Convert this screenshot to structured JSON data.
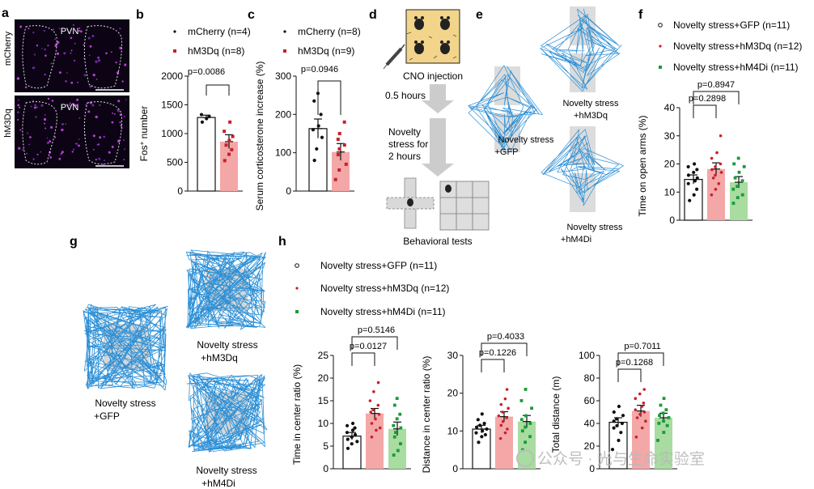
{
  "panels": {
    "a": {
      "letter": "a",
      "region": "PVN",
      "rows": [
        "mCherry",
        "hM3Dq"
      ]
    },
    "b": {
      "letter": "b",
      "legend": [
        "mCherry (n=4)",
        "hM3Dq (n=8)"
      ],
      "pval": "p=0.0086",
      "ylabel_main": "Fos",
      "ylabel_sup": "+",
      "ylabel_rest": " number"
    },
    "c": {
      "letter": "c",
      "legend": [
        "mCherry (n=8)",
        "hM3Dq (n=9)"
      ],
      "pval": "p=0.0946",
      "ylabel": "Serum corticosterone increase (%)"
    },
    "d": {
      "letter": "d",
      "cno": "CNO injection",
      "step1": "0.5 hours",
      "step2": [
        "Novelty",
        "stress for",
        "2 hours"
      ],
      "step3": "Behavioral tests"
    },
    "e": {
      "letter": "e",
      "labels": [
        [
          "Novelty stress",
          "+hM3Dq"
        ],
        [
          "Novelty stress",
          "+GFP"
        ],
        [
          "Novelty stress",
          "+hM4Di"
        ]
      ]
    },
    "f": {
      "letter": "f",
      "legend": [
        "Novelty stress+GFP (n=11)",
        "Novelty stress+hM3Dq (n=12)",
        "Novelty stress+hM4Di (n=11)"
      ],
      "pvals": [
        "p=0.8947",
        "p=0.2898"
      ],
      "ylabel": "Time on open arms (%)"
    },
    "g": {
      "letter": "g",
      "labels": [
        [
          "Novelty stress",
          "+GFP"
        ],
        [
          "Novelty stress",
          "+hM3Dq"
        ],
        [
          "Novelty stress",
          "+hM4Di"
        ]
      ]
    },
    "h": {
      "letter": "h",
      "legend": [
        "Novelty stress+GFP (n=11)",
        "Novelty stress+hM3Dq (n=12)",
        "Novelty stress+hM4Di (n=11)"
      ],
      "charts": [
        {
          "pvals": [
            "p=0.5146",
            "p=0.0127"
          ],
          "ylabel": "Time in center ratio (%)"
        },
        {
          "pvals": [
            "p=0.4033",
            "p=0.1226"
          ],
          "ylabel": "Distance in center ratio (%)"
        },
        {
          "pvals": [
            "p=0.7011",
            "p=0.1268"
          ],
          "ylabel": "Total distance (m)"
        }
      ]
    }
  },
  "watermark": "公众号 · 光与生命实验室",
  "colors": {
    "gfp": "#ffffff",
    "gfp_dot": "#111111",
    "hm3dq": "#f4a7a7",
    "hm3dq_dot": "#c8202a",
    "hm4di": "#a8dca0",
    "hm4di_dot": "#1a9a3a",
    "trace": "#2b8fd6",
    "arena": "#d6d6d6"
  },
  "chart_data": [
    {
      "id": "b",
      "type": "bar",
      "categories": [
        "mCherry",
        "hM3Dq"
      ],
      "values": [
        1280,
        860
      ],
      "errors": [
        40,
        120
      ],
      "points": [
        [
          1200,
          1260,
          1300,
          1330
        ],
        [
          530,
          640,
          720,
          800,
          880,
          950,
          1040,
          1200
        ]
      ],
      "ylim": [
        0,
        2000
      ],
      "yticks": [
        "0",
        "500",
        "1000",
        "1500",
        "2000"
      ],
      "tickvals": [
        0,
        500,
        1000,
        1500,
        2000
      ],
      "ylabel": "Fos+ number",
      "significance": [
        "p=0.0086"
      ]
    },
    {
      "id": "c",
      "type": "bar",
      "categories": [
        "mCherry",
        "hM3Dq"
      ],
      "values": [
        163,
        102
      ],
      "errors": [
        25,
        22
      ],
      "points": [
        [
          80,
          110,
          140,
          160,
          170,
          200,
          235,
          255
        ],
        [
          30,
          55,
          70,
          95,
          110,
          120,
          135,
          150,
          180
        ]
      ],
      "ylim": [
        0,
        300
      ],
      "yticks": [
        "0",
        "100",
        "200",
        "300"
      ],
      "tickvals": [
        0,
        100,
        200,
        300
      ],
      "ylabel": "Serum corticosterone increase (%)",
      "significance": [
        "p=0.0946"
      ]
    },
    {
      "id": "f",
      "type": "bar",
      "categories": [
        "GFP",
        "hM3Dq",
        "hM4Di"
      ],
      "values": [
        14.5,
        18.2,
        13.5
      ],
      "errors": [
        1.6,
        2.2,
        2.0
      ],
      "points": [
        [
          7,
          9,
          11,
          13,
          14,
          15,
          16,
          17,
          18,
          19,
          20
        ],
        [
          9,
          11,
          13,
          15,
          16,
          17,
          18,
          19,
          20,
          22,
          24,
          30
        ],
        [
          6,
          8,
          9,
          11,
          12,
          14,
          15,
          17,
          19,
          20,
          22
        ]
      ],
      "ylim": [
        0,
        40
      ],
      "yticks": [
        "0",
        "10",
        "20",
        "30",
        "40"
      ],
      "tickvals": [
        0,
        10,
        20,
        30,
        40
      ],
      "ylabel": "Time on open arms (%)",
      "significance": [
        "p=0.8947",
        "p=0.2898"
      ]
    },
    {
      "id": "h1",
      "type": "bar",
      "categories": [
        "GFP",
        "hM3Dq",
        "hM4Di"
      ],
      "values": [
        7.2,
        12.2,
        8.8
      ],
      "errors": [
        0.8,
        1.1,
        1.5
      ],
      "points": [
        [
          4.5,
          5.5,
          6,
          6.5,
          7,
          7.5,
          8,
          8.5,
          9,
          9.5,
          10
        ],
        [
          7,
          8.5,
          9,
          10,
          11,
          12,
          12.5,
          13,
          14,
          15,
          17,
          19
        ],
        [
          3,
          4,
          5.5,
          7,
          8,
          9,
          9.5,
          11,
          12,
          14,
          15.5
        ]
      ],
      "ylim": [
        0,
        25
      ],
      "yticks": [
        "0",
        "5",
        "10",
        "15",
        "20",
        "25"
      ],
      "tickvals": [
        0,
        5,
        10,
        15,
        20,
        25
      ],
      "ylabel": "Time in center ratio (%)",
      "significance": [
        "p=0.5146",
        "p=0.0127"
      ]
    },
    {
      "id": "h2",
      "type": "bar",
      "categories": [
        "GFP",
        "hM3Dq",
        "hM4Di"
      ],
      "values": [
        10.5,
        13.8,
        12.5
      ],
      "errors": [
        1.0,
        1.3,
        1.6
      ],
      "points": [
        [
          7,
          8.5,
          9,
          9.5,
          10,
          10.5,
          11,
          11.5,
          12,
          13,
          14.5
        ],
        [
          8,
          9.5,
          10.5,
          11.5,
          12.5,
          13.5,
          14,
          15,
          16,
          17,
          18.5,
          21
        ],
        [
          5,
          7,
          8.5,
          10,
          11,
          12,
          13,
          14,
          16,
          18,
          21
        ]
      ],
      "ylim": [
        0,
        30
      ],
      "yticks": [
        "0",
        "10",
        "20",
        "30"
      ],
      "tickvals": [
        0,
        10,
        20,
        30
      ],
      "ylabel": "Distance in center ratio (%)",
      "significance": [
        "p=0.4033",
        "p=0.1226"
      ]
    },
    {
      "id": "h3",
      "type": "bar",
      "categories": [
        "GFP",
        "hM3Dq",
        "hM4Di"
      ],
      "values": [
        41,
        51,
        45
      ],
      "errors": [
        4,
        5,
        4
      ],
      "points": [
        [
          17,
          25,
          32,
          36,
          38,
          40,
          42,
          44,
          47,
          50,
          55
        ],
        [
          28,
          36,
          42,
          45,
          48,
          50,
          52,
          55,
          58,
          62,
          66,
          70
        ],
        [
          25,
          32,
          38,
          40,
          42,
          45,
          47,
          49,
          52,
          56,
          62
        ]
      ],
      "ylim": [
        0,
        100
      ],
      "yticks": [
        "0",
        "20",
        "40",
        "60",
        "80",
        "100"
      ],
      "tickvals": [
        0,
        20,
        40,
        60,
        80,
        100
      ],
      "ylabel": "Total distance (m)",
      "significance": [
        "p=0.7011",
        "p=0.1268"
      ]
    }
  ]
}
